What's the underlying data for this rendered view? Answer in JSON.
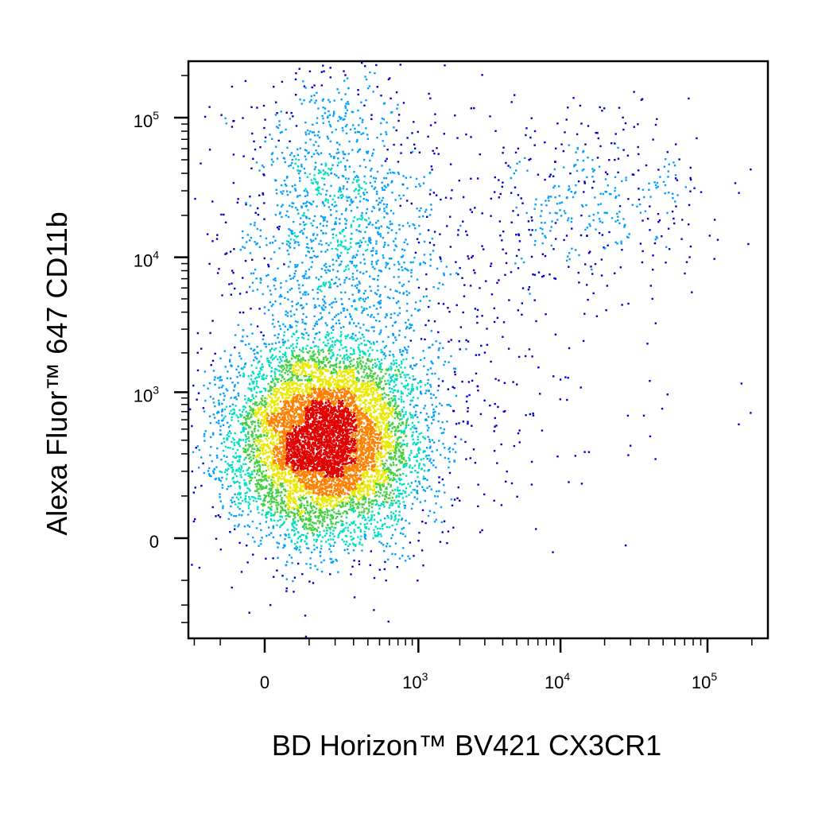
{
  "chart_data": {
    "type": "scatter",
    "subtype": "flow-cytometry-density-dot-plot",
    "title": "",
    "xlabel": "BD Horizon™ BV421 CX3CR1",
    "ylabel": "Alexa Fluor™ 647 CD11b",
    "x_scale": "biexponential",
    "y_scale": "biexponential",
    "xlim": [
      -400,
      250000
    ],
    "ylim": [
      -800,
      250000
    ],
    "x_ticks": [
      {
        "value": 0,
        "base": "0",
        "exp": ""
      },
      {
        "value": 1000,
        "base": "10",
        "exp": "3"
      },
      {
        "value": 10000,
        "base": "10",
        "exp": "4"
      },
      {
        "value": 100000,
        "base": "10",
        "exp": "5"
      }
    ],
    "y_ticks": [
      {
        "value": 0,
        "base": "0",
        "exp": ""
      },
      {
        "value": 1000,
        "base": "10",
        "exp": "3"
      },
      {
        "value": 10000,
        "base": "10",
        "exp": "4"
      },
      {
        "value": 100000,
        "base": "10",
        "exp": "5"
      }
    ],
    "grid": false,
    "legend": "none",
    "density_colormap": [
      "#0000cc",
      "#00a0ff",
      "#00e0c0",
      "#40d040",
      "#e8e800",
      "#ff8000",
      "#e00000"
    ],
    "populations": [
      {
        "name": "",
        "x_center": 150,
        "y_center": 400,
        "n": 8000,
        "spread_x": 0.9,
        "spread_y": 1.0
      },
      {
        "name": "",
        "x_center": 200,
        "y_center": 20000,
        "n": 1400,
        "spread_x": 1.0,
        "spread_y": 1.5
      },
      {
        "name": "",
        "x_center": 15000,
        "y_center": 25000,
        "n": 450,
        "spread_x": 1.2,
        "spread_y": 0.9
      },
      {
        "name": "",
        "x_center": 1200,
        "y_center": 2000,
        "n": 350,
        "spread_x": 1.5,
        "spread_y": 1.5
      },
      {
        "name": "",
        "x_center": 5000,
        "y_center": 300,
        "n": 35,
        "spread_x": 2.0,
        "spread_y": 0.8
      }
    ]
  }
}
